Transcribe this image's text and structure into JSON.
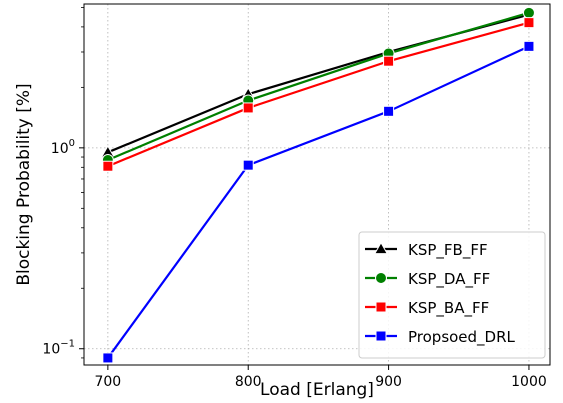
{
  "chart_data": {
    "type": "line",
    "xlabel": "Load [Erlang]",
    "ylabel": "Blocking Probability [%]",
    "y_scale": "log",
    "xlim": [
      683,
      1015
    ],
    "ylim": [
      0.083,
      5.2
    ],
    "x_ticks": [
      700,
      800,
      900,
      1000
    ],
    "x_tick_labels": [
      "700",
      "800",
      "900",
      "1000"
    ],
    "y_ticks": [
      0.1,
      1
    ],
    "y_tick_labels_base": [
      "10",
      "10"
    ],
    "y_tick_labels_exp": [
      "−1",
      "0"
    ],
    "grid": true,
    "legend_position": "bottom-right",
    "x": [
      700,
      800,
      900,
      1000
    ],
    "series": [
      {
        "name": "KSP_FB_FF",
        "color": "#000000",
        "marker": "triangle",
        "values": [
          0.95,
          1.85,
          3.0,
          4.6
        ]
      },
      {
        "name": "KSP_DA_FF",
        "color": "#008000",
        "marker": "circle",
        "values": [
          0.87,
          1.72,
          2.95,
          4.7
        ]
      },
      {
        "name": "KSP_BA_FF",
        "color": "#ff0000",
        "marker": "square",
        "values": [
          0.81,
          1.58,
          2.7,
          4.2
        ]
      },
      {
        "name": "Propsoed_DRL",
        "color": "#0000ff",
        "marker": "square",
        "values": [
          0.09,
          0.82,
          1.52,
          3.2
        ]
      }
    ]
  }
}
